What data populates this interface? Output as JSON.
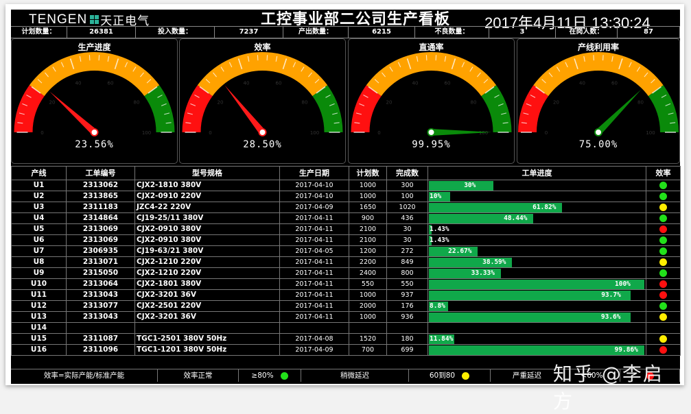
{
  "header": {
    "logo_en": "TENGEN",
    "logo_cn": "天正电气",
    "title": "工控事业部二公司生产看板",
    "datetime": "2017年4月11日 13:30:24"
  },
  "summary": [
    {
      "label": "计划数量：",
      "value": "26381"
    },
    {
      "label": "投入数量：",
      "value": "7237"
    },
    {
      "label": "产出数量：",
      "value": "6215"
    },
    {
      "label": "不良数量：",
      "value": "3"
    },
    {
      "label": "在岗人数：",
      "value": "87"
    }
  ],
  "gauges": [
    {
      "title": "生产进度",
      "value": 23.56,
      "display": "23.56%",
      "needle_color": "#ff1a1a"
    },
    {
      "title": "效率",
      "value": 28.5,
      "display": "28.50%",
      "needle_color": "#ff1a1a"
    },
    {
      "title": "直通率",
      "value": 99.95,
      "display": "99.95%",
      "needle_color": "#0a8a0a"
    },
    {
      "title": "产线利用率",
      "value": 75.0,
      "display": "75.00%",
      "needle_color": "#0a8a0a"
    }
  ],
  "gauge_scale": {
    "ticks": [
      "0",
      "20",
      "40",
      "60",
      "80",
      "100"
    ],
    "bands": [
      {
        "from": 0,
        "to": 20,
        "color": "#ff1010"
      },
      {
        "from": 20,
        "to": 80,
        "color": "#ffa200"
      },
      {
        "from": 80,
        "to": 100,
        "color": "#0a8a0a"
      }
    ]
  },
  "table": {
    "headers": [
      "产线",
      "工单编号",
      "型号规格",
      "生产日期",
      "计划数",
      "完成数",
      "工单进度",
      "效率"
    ],
    "rows": [
      {
        "line": "U1",
        "order": "2313062",
        "model": "CJX2-1810 380V",
        "date": "2017-04-10",
        "plan": "1000",
        "done": "300",
        "progress": 30,
        "progress_label": "30%",
        "eff": "green"
      },
      {
        "line": "U2",
        "order": "2313865",
        "model": "CJX2-0910 220V",
        "date": "2017-04-10",
        "plan": "1000",
        "done": "100",
        "progress": 10,
        "progress_label": "10%",
        "eff": "green"
      },
      {
        "line": "U3",
        "order": "2311183",
        "model": "JZC4-22 220V",
        "date": "2017-04-09",
        "plan": "1650",
        "done": "1020",
        "progress": 61.82,
        "progress_label": "61.82%",
        "eff": "yellow"
      },
      {
        "line": "U4",
        "order": "2314864",
        "model": "CJ19-25/11 380V",
        "date": "2017-04-11",
        "plan": "900",
        "done": "436",
        "progress": 48.44,
        "progress_label": "48.44%",
        "eff": "green"
      },
      {
        "line": "U5",
        "order": "2313069",
        "model": "CJX2-0910 380V",
        "date": "2017-04-11",
        "plan": "2100",
        "done": "30",
        "progress": 1.43,
        "progress_label": "1.43%",
        "eff": "red"
      },
      {
        "line": "U6",
        "order": "2313069",
        "model": "CJX2-0910 380V",
        "date": "2017-04-11",
        "plan": "2100",
        "done": "30",
        "progress": 1.43,
        "progress_label": "1.43%",
        "eff": "green"
      },
      {
        "line": "U7",
        "order": "2306935",
        "model": "CJ19-63/21 380V",
        "date": "2017-04-05",
        "plan": "1200",
        "done": "272",
        "progress": 22.67,
        "progress_label": "22.67%",
        "eff": "green"
      },
      {
        "line": "U8",
        "order": "2313071",
        "model": "CJX2-1210 220V",
        "date": "2017-04-11",
        "plan": "2200",
        "done": "849",
        "progress": 38.59,
        "progress_label": "38.59%",
        "eff": "yellow"
      },
      {
        "line": "U9",
        "order": "2315050",
        "model": "CJX2-1210 220V",
        "date": "2017-04-11",
        "plan": "2400",
        "done": "800",
        "progress": 33.33,
        "progress_label": "33.33%",
        "eff": "green"
      },
      {
        "line": "U10",
        "order": "2313064",
        "model": "CJX2-1801 380V",
        "date": "2017-04-11",
        "plan": "550",
        "done": "550",
        "progress": 100,
        "progress_label": "100%",
        "eff": "red"
      },
      {
        "line": "U11",
        "order": "2313043",
        "model": "CJX2-3201 36V",
        "date": "2017-04-11",
        "plan": "1000",
        "done": "937",
        "progress": 93.7,
        "progress_label": "93.7%",
        "eff": "red"
      },
      {
        "line": "U12",
        "order": "2313077",
        "model": "CJX2-2501 220V",
        "date": "2017-04-11",
        "plan": "2000",
        "done": "176",
        "progress": 8.8,
        "progress_label": "8.8%",
        "eff": "green"
      },
      {
        "line": "U13",
        "order": "2313043",
        "model": "CJX2-3201 36V",
        "date": "2017-04-11",
        "plan": "1000",
        "done": "936",
        "progress": 93.6,
        "progress_label": "93.6%",
        "eff": "yellow"
      },
      {
        "line": "U14",
        "order": "",
        "model": "",
        "date": "",
        "plan": "",
        "done": "",
        "progress": null,
        "progress_label": "",
        "eff": ""
      },
      {
        "line": "U15",
        "order": "2311087",
        "model": "TGC1-2501 380V 50Hz",
        "date": "2017-04-08",
        "plan": "1520",
        "done": "180",
        "progress": 11.84,
        "progress_label": "11.84%",
        "eff": "yellow"
      },
      {
        "line": "U16",
        "order": "2311096",
        "model": "TGC1-1201 380V 50Hz",
        "date": "2017-04-09",
        "plan": "700",
        "done": "699",
        "progress": 99.86,
        "progress_label": "99.86%",
        "eff": "red"
      }
    ]
  },
  "legend": {
    "formula": "效率=实际产能/标准产能",
    "normal_label": "效率正常",
    "normal_range": "≥80%",
    "slight_label": "稍微延迟",
    "slight_range": "60到80",
    "severe_label": "严重延迟",
    "severe_range": "<60%"
  },
  "status_colors": {
    "green": "#22e01a",
    "yellow": "#ffee00",
    "red": "#ff1010"
  },
  "watermark": "知乎 @李启方"
}
